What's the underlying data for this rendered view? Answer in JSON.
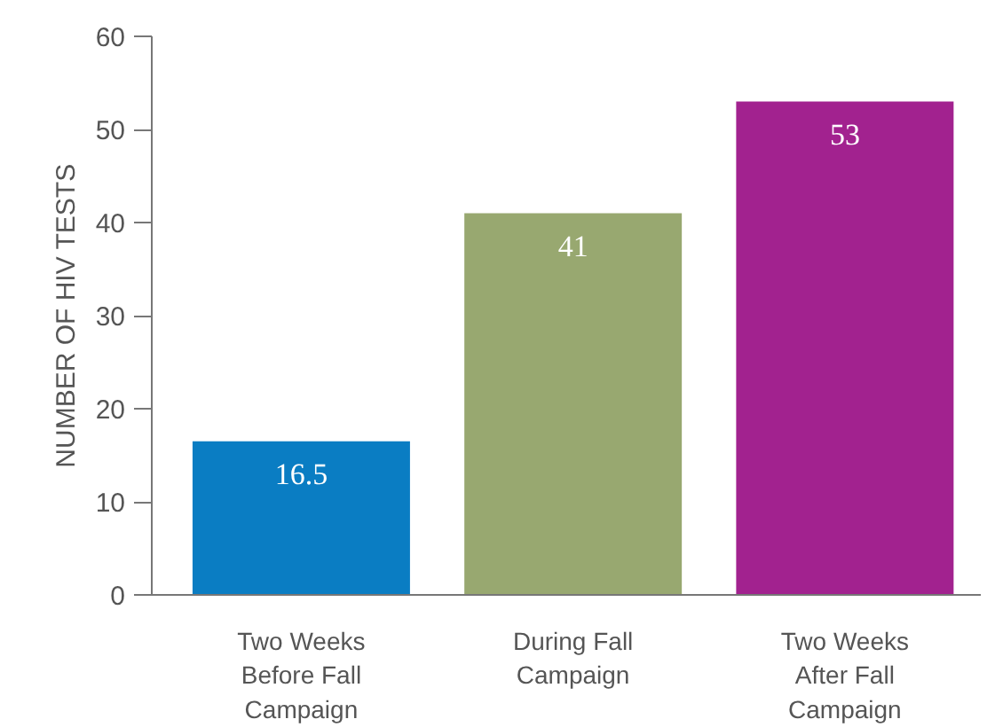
{
  "chart_data": {
    "type": "bar",
    "ylabel": "NUMBER OF HIV TESTS",
    "categories": [
      "Two Weeks Before Fall Campaign",
      "During Fall Campaign",
      "Two Weeks After Fall Campaign"
    ],
    "values": [
      16.5,
      41,
      53
    ],
    "colors": [
      "#0a7dc3",
      "#98a870",
      "#a2228f"
    ],
    "ylim": [
      0,
      60
    ],
    "yticks": [
      0,
      10,
      20,
      30,
      40,
      50,
      60
    ],
    "grid": false,
    "data_labels": true
  }
}
